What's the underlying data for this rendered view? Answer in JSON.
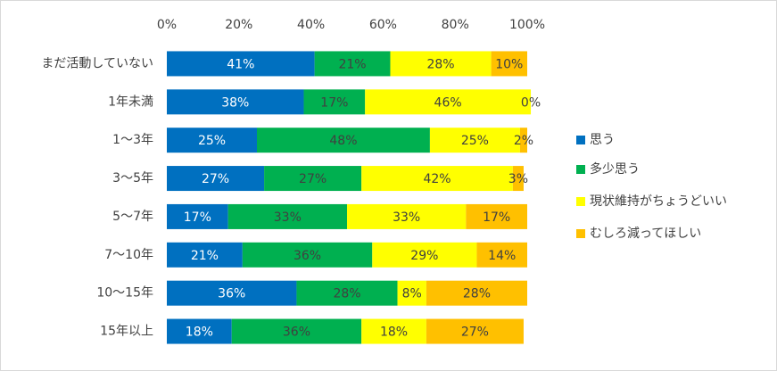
{
  "chart_data": {
    "type": "stacked_bar_horizontal",
    "categories": [
      "まだ活動していない",
      "1年未満",
      "1～3年",
      "3～5年",
      "5～7年",
      "7～10年",
      "10～15年",
      "15年以上"
    ],
    "series": [
      {
        "name": "思う",
        "color": "#0070c0",
        "values": [
          41,
          38,
          25,
          27,
          17,
          21,
          36,
          18
        ],
        "value_labels": [
          "41%",
          "38%",
          "25%",
          "27%",
          "17%",
          "21%",
          "36%",
          "18%"
        ]
      },
      {
        "name": "多少思う",
        "color": "#00b050",
        "values": [
          21,
          17,
          48,
          27,
          33,
          36,
          28,
          36
        ],
        "value_labels": [
          "21%",
          "17%",
          "48%",
          "27%",
          "33%",
          "36%",
          "28%",
          "36%"
        ]
      },
      {
        "name": "現状維持がちょうどいい",
        "color": "#ffff00",
        "values": [
          28,
          46,
          25,
          42,
          33,
          29,
          8,
          18
        ],
        "value_labels": [
          "28%",
          "46%",
          "25%",
          "42%",
          "33%",
          "29%",
          "8%",
          "18%"
        ]
      },
      {
        "name": "むしろ減ってほしい",
        "color": "#ffc000",
        "values": [
          10,
          0,
          2,
          3,
          17,
          14,
          28,
          27
        ],
        "value_labels": [
          "10%",
          "0%",
          "2%",
          "3%",
          "17%",
          "14%",
          "28%",
          "27%"
        ]
      }
    ],
    "xlim": [
      0,
      100
    ],
    "xticks": [
      {
        "value": 0,
        "label": "0%"
      },
      {
        "value": 20,
        "label": "20%"
      },
      {
        "value": 40,
        "label": "40%"
      },
      {
        "value": 60,
        "label": "60%"
      },
      {
        "value": 80,
        "label": "80%"
      },
      {
        "value": 100,
        "label": "100%"
      }
    ],
    "grid": false,
    "legend": "right"
  }
}
